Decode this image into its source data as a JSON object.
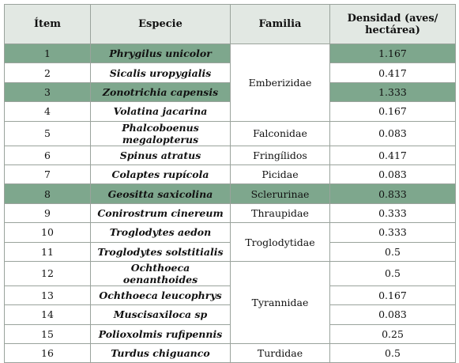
{
  "table": {
    "header": [
      "Ítem",
      "Especie",
      "Familia",
      "Densidad (aves/\nhectárea)"
    ],
    "rows": [
      {
        "item": "1",
        "species": "Phrygilus unicolor",
        "family": "Emberizidae",
        "density": "1.167",
        "highlight": true
      },
      {
        "item": "2",
        "species": "Sicalis uropygialis",
        "density": "0.417"
      },
      {
        "item": "3",
        "species": "Zonotrichia capensis",
        "density": "1.333",
        "highlight": true
      },
      {
        "item": "4",
        "species": "Volatina jacarina",
        "density": "0.167"
      },
      {
        "item": "5",
        "species": "Phalcoboenus megalopterus",
        "family": "Falconidae",
        "density": "0.083"
      },
      {
        "item": "6",
        "species": "Spinus atratus",
        "family": "Fringílidos",
        "density": "0.417"
      },
      {
        "item": "7",
        "species": "Colaptes rupícola",
        "family": "Picidae",
        "density": "0.083"
      },
      {
        "item": "8",
        "species": "Geositta saxicolina",
        "family": "Sclerurinae",
        "density": "0.833",
        "highlight": true
      },
      {
        "item": "9",
        "species": "Conirostrum cinereum",
        "family": "Thraupidae",
        "density": "0.333"
      },
      {
        "item": "10",
        "species": "Troglodytes aedon",
        "family": "Troglodytidae",
        "density": "0.333"
      },
      {
        "item": "11",
        "species": "Troglodytes solstitialis",
        "density": "0.5"
      },
      {
        "item": "12",
        "species": "Ochthoeca oenanthoides",
        "family": "Tyrannidae",
        "density": "0.5"
      },
      {
        "item": "13",
        "species": "Ochthoeca leucophrys",
        "density": "0.167"
      },
      {
        "item": "14",
        "species": "Muscisaxiloca sp",
        "density": "0.083"
      },
      {
        "item": "15",
        "species": "Polioxolmis rufipennis",
        "density": "0.25"
      },
      {
        "item": "16",
        "species": "Turdus chiguanco",
        "family": "Turdidae",
        "density": "0.5"
      }
    ]
  }
}
